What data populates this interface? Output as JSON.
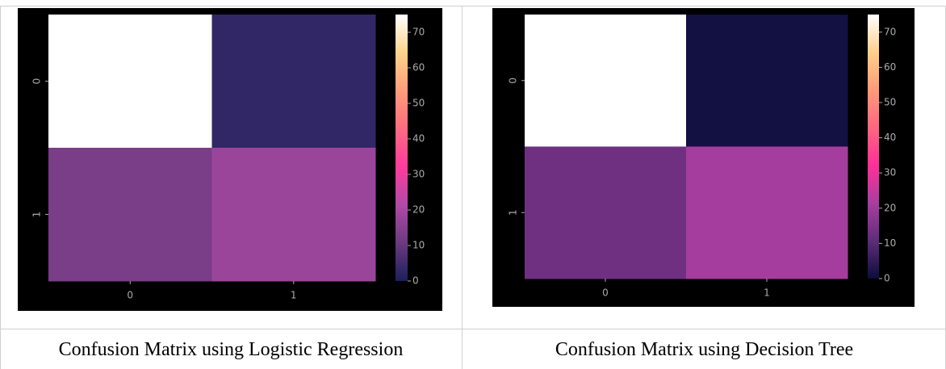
{
  "chart_data": [
    {
      "type": "heatmap",
      "x_categories": [
        "0",
        "1"
      ],
      "y_categories": [
        "0",
        "1"
      ],
      "values": [
        [
          75,
          3
        ],
        [
          13,
          18
        ]
      ],
      "clim": [
        0,
        75
      ],
      "cticks": [
        0,
        10,
        20,
        30,
        40,
        50,
        60,
        70
      ],
      "colormap": [
        "#1c1f5c",
        "#6b3a80",
        "#b14aa6",
        "#ff3b9d",
        "#ff6b80",
        "#ff9d79",
        "#ffd38c",
        "#ffffff"
      ]
    },
    {
      "type": "heatmap",
      "x_categories": [
        "0",
        "1"
      ],
      "y_categories": [
        "0",
        "1"
      ],
      "values": [
        [
          75,
          1
        ],
        [
          13,
          21
        ]
      ],
      "clim": [
        0,
        75
      ],
      "cticks": [
        0,
        10,
        20,
        30,
        40,
        50,
        60,
        70
      ],
      "colormap": [
        "#0b0d3c",
        "#5f2c7a",
        "#a83ea0",
        "#ff2f99",
        "#ff6680",
        "#ff9a78",
        "#ffd08a",
        "#ffffff"
      ]
    }
  ],
  "captions": [
    "Confusion Matrix using Logistic Regression",
    "Confusion Matrix using Decision Tree"
  ]
}
